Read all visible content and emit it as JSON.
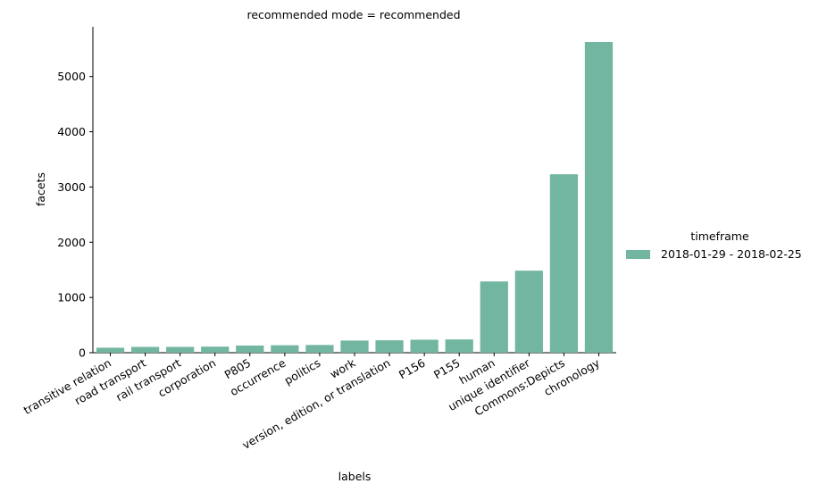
{
  "chart_data": {
    "type": "bar",
    "title": "recommended mode = recommended",
    "xlabel": "labels",
    "ylabel": "facets",
    "ylim": [
      0,
      5900
    ],
    "yticks": [
      0,
      1000,
      2000,
      3000,
      4000,
      5000
    ],
    "categories": [
      "transitive relation",
      "road transport",
      "rail transport",
      "corporation",
      "P805",
      "occurrence",
      "politics",
      "work",
      "version, edition, or translation",
      "P156",
      "P155",
      "human",
      "unique identifier",
      "Commons:Depicts",
      "chronology"
    ],
    "series": [
      {
        "name": "2018-01-29 - 2018-02-25",
        "color": "#72b6a1",
        "values": [
          90,
          105,
          105,
          110,
          130,
          135,
          140,
          220,
          225,
          235,
          240,
          1290,
          1485,
          3230,
          5625
        ]
      }
    ],
    "legend": {
      "title": "timeframe",
      "placement": "center-right"
    },
    "grid": false
  }
}
